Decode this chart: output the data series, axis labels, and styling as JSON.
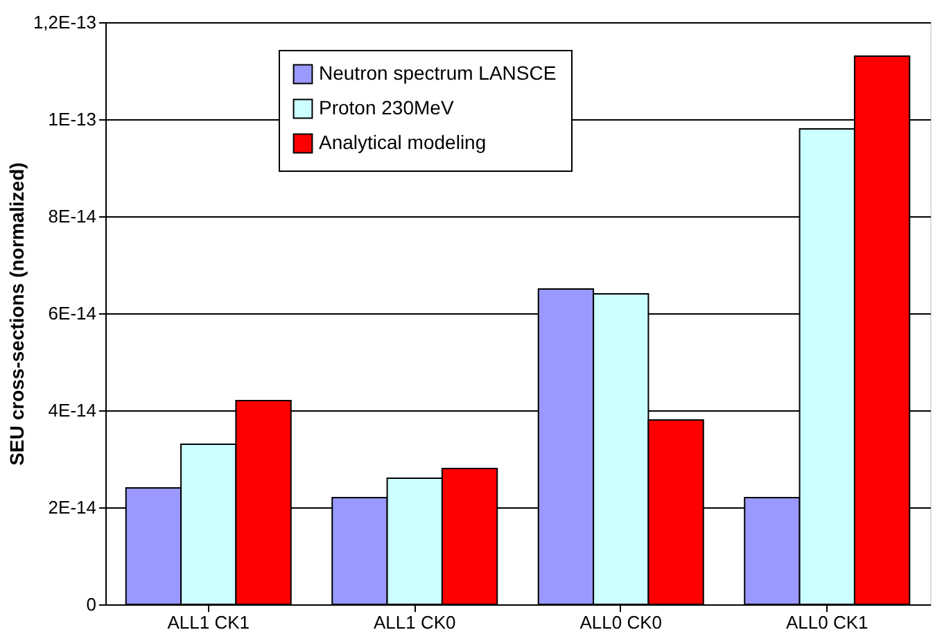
{
  "chart_data": {
    "type": "bar",
    "ylabel": "SEU cross-sections (normalized)",
    "categories": [
      "ALL1 CK1",
      "ALL1 CK0",
      "ALL0 CK0",
      "ALL0 CK1"
    ],
    "series": [
      {
        "name": "Neutron spectrum LANSCE",
        "color": "#9999ff",
        "values": [
          2.4e-14,
          2.2e-14,
          6.5e-14,
          2.2e-14
        ]
      },
      {
        "name": "Proton 230MeV",
        "color": "#ccffff",
        "values": [
          3.3e-14,
          2.6e-14,
          6.4e-14,
          9.8e-14
        ]
      },
      {
        "name": "Analytical modeling",
        "color": "#ff0000",
        "values": [
          4.2e-14,
          2.8e-14,
          3.8e-14,
          1.13e-13
        ]
      }
    ],
    "ylim": [
      0,
      1.2e-13
    ],
    "yticks": [
      0,
      {
        "value": 2e-14,
        "label": "2E-14"
      },
      {
        "value": 4e-14,
        "label": "4E-14"
      },
      {
        "value": 6e-14,
        "label": "6E-14"
      },
      {
        "value": 8e-14,
        "label": "8E-14"
      },
      {
        "value": 1e-13,
        "label": "1E-13"
      },
      {
        "value": 1.2e-13,
        "label": "1,2E-13"
      }
    ],
    "grid": "y",
    "legend": "top"
  }
}
